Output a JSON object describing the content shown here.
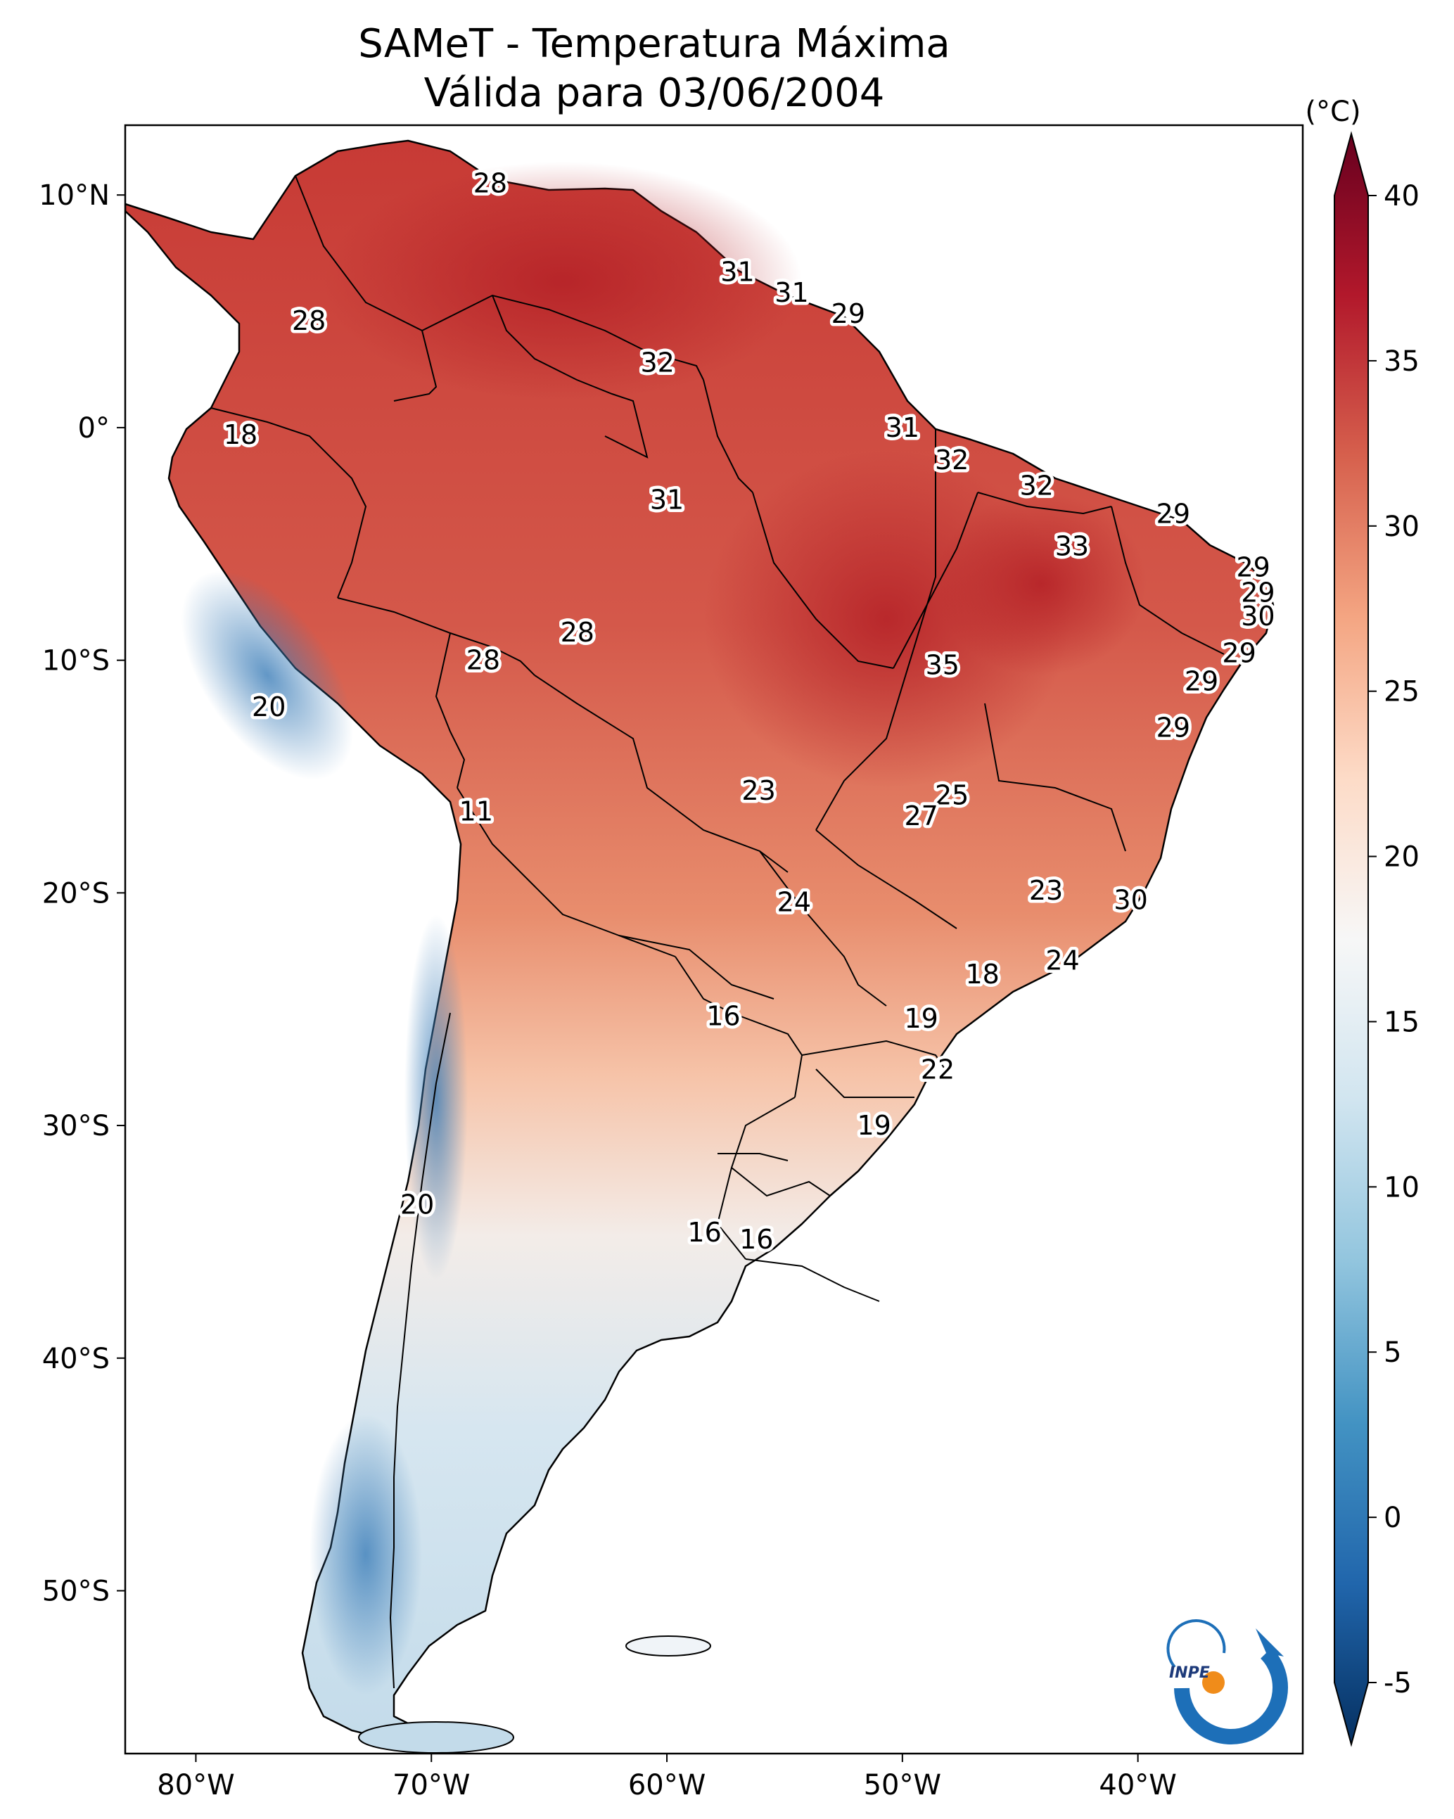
{
  "title": {
    "line1": "SAMeT - Temperatura Máxima",
    "line2": "Válida para 03/06/2004"
  },
  "map": {
    "lon_labels": [
      "80°W",
      "70°W",
      "60°W",
      "50°W",
      "40°W"
    ],
    "lat_labels": [
      "10°N",
      "0°",
      "10°S",
      "20°S",
      "30°S",
      "40°S",
      "50°S"
    ],
    "lon_range": [
      -83,
      -33
    ],
    "lat_range": [
      -57,
      13
    ]
  },
  "colorbar": {
    "unit": "(°C)",
    "ticks": [
      "40",
      "35",
      "30",
      "25",
      "20",
      "15",
      "10",
      "5",
      "0",
      "-5"
    ],
    "range": [
      -5,
      40
    ],
    "colormap": "RdBu_r",
    "colors": [
      "#053061",
      "#2166ac",
      "#4393c3",
      "#92c5de",
      "#d1e5f0",
      "#f7f7f7",
      "#fddbc7",
      "#f4a582",
      "#d6604d",
      "#b2182b",
      "#67001f"
    ]
  },
  "logo": {
    "text": "INPE"
  },
  "stations": [
    {
      "label": "28",
      "lon": -67.5,
      "lat": 10.5
    },
    {
      "label": "31",
      "lon": -57.0,
      "lat": 6.7
    },
    {
      "label": "31",
      "lon": -54.7,
      "lat": 5.8
    },
    {
      "label": "29",
      "lon": -52.3,
      "lat": 4.9
    },
    {
      "label": "28",
      "lon": -75.2,
      "lat": 4.6
    },
    {
      "label": "32",
      "lon": -60.4,
      "lat": 2.8
    },
    {
      "label": "31",
      "lon": -50.0,
      "lat": 0.0
    },
    {
      "label": "18",
      "lon": -78.1,
      "lat": -0.3
    },
    {
      "label": "32",
      "lon": -47.9,
      "lat": -1.4
    },
    {
      "label": "32",
      "lon": -44.3,
      "lat": -2.5
    },
    {
      "label": "31",
      "lon": -60.0,
      "lat": -3.1
    },
    {
      "label": "29",
      "lon": -38.5,
      "lat": -3.7
    },
    {
      "label": "33",
      "lon": -42.8,
      "lat": -5.1
    },
    {
      "label": "29",
      "lon": -35.1,
      "lat": -6.0
    },
    {
      "label": "29",
      "lon": -34.9,
      "lat": -7.1
    },
    {
      "label": "30",
      "lon": -34.9,
      "lat": -8.1
    },
    {
      "label": "28",
      "lon": -63.8,
      "lat": -8.8
    },
    {
      "label": "29",
      "lon": -35.7,
      "lat": -9.7
    },
    {
      "label": "28",
      "lon": -67.8,
      "lat": -10.0
    },
    {
      "label": "35",
      "lon": -48.3,
      "lat": -10.2
    },
    {
      "label": "29",
      "lon": -37.3,
      "lat": -10.9
    },
    {
      "label": "20",
      "lon": -76.9,
      "lat": -12.0
    },
    {
      "label": "29",
      "lon": -38.5,
      "lat": -12.9
    },
    {
      "label": "23",
      "lon": -56.1,
      "lat": -15.6
    },
    {
      "label": "25",
      "lon": -47.9,
      "lat": -15.8
    },
    {
      "label": "27",
      "lon": -49.2,
      "lat": -16.7
    },
    {
      "label": "11",
      "lon": -68.1,
      "lat": -16.5
    },
    {
      "label": "23",
      "lon": -43.9,
      "lat": -19.9
    },
    {
      "label": "30",
      "lon": -40.3,
      "lat": -20.3
    },
    {
      "label": "24",
      "lon": -54.6,
      "lat": -20.4
    },
    {
      "label": "24",
      "lon": -43.2,
      "lat": -22.9
    },
    {
      "label": "18",
      "lon": -46.6,
      "lat": -23.5
    },
    {
      "label": "16",
      "lon": -57.6,
      "lat": -25.3
    },
    {
      "label": "19",
      "lon": -49.2,
      "lat": -25.4
    },
    {
      "label": "22",
      "lon": -48.5,
      "lat": -27.6
    },
    {
      "label": "19",
      "lon": -51.2,
      "lat": -30.0
    },
    {
      "label": "20",
      "lon": -70.6,
      "lat": -33.4
    },
    {
      "label": "16",
      "lon": -58.4,
      "lat": -34.6
    },
    {
      "label": "16",
      "lon": -56.2,
      "lat": -34.9
    }
  ]
}
